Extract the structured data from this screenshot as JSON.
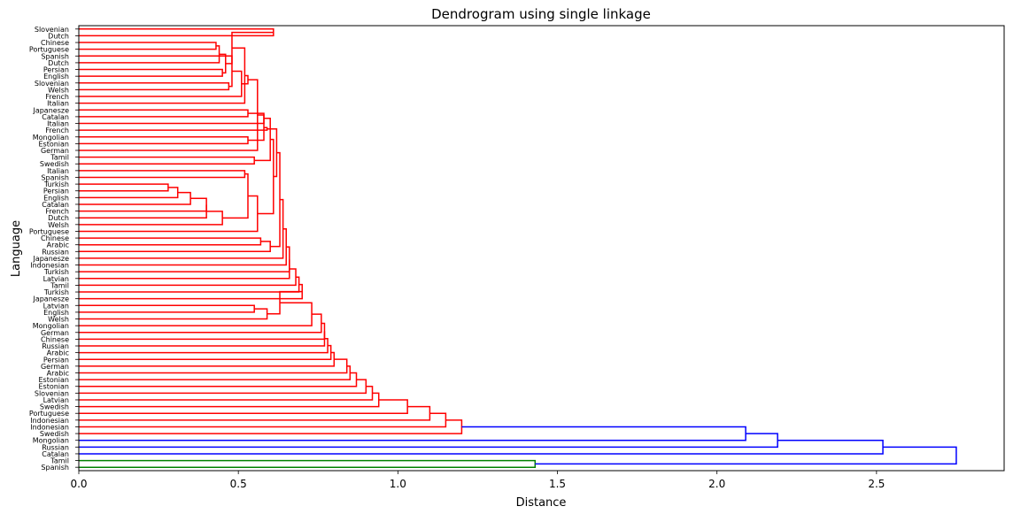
{
  "chart_data": {
    "type": "dendrogram",
    "title": "Dendrogram using single linkage",
    "xlabel": "Distance",
    "ylabel": "Language",
    "xlim": [
      0,
      2.9
    ],
    "xticks": [
      "0.0",
      "0.5",
      "1.0",
      "1.5",
      "2.0",
      "2.5"
    ],
    "xtick_values": [
      0,
      0.5,
      1.0,
      1.5,
      2.0,
      2.5
    ],
    "orientation": "left",
    "grid": false,
    "colors": {
      "cluster_1": "#ff0000",
      "cluster_2": "#008000",
      "above_threshold": "#0000ff"
    },
    "leaves": [
      "Slovenian",
      "Dutch",
      "Chinese",
      "Portuguese",
      "Spanish",
      "Dutch",
      "Persian",
      "English",
      "Slovenian",
      "Welsh",
      "French",
      "Italian",
      "Japanesze",
      "Catalan",
      "Italian",
      "French",
      "Mongolian",
      "Estonian",
      "German",
      "Tamil",
      "Swedish",
      "Italian",
      "Spanish",
      "Turkish",
      "Persian",
      "English",
      "Catalan",
      "French",
      "Dutch",
      "Welsh",
      "Portuguese",
      "Chinese",
      "Arabic",
      "Russian",
      "Japanesze",
      "Indonesian",
      "Turkish",
      "Latvian",
      "Tamil",
      "Turkish",
      "Japanesze",
      "Latvian",
      "English",
      "Welsh",
      "Mongolian",
      "German",
      "Chinese",
      "Russian",
      "Arabic",
      "Persian",
      "German",
      "Arabic",
      "Estonian",
      "Estonian",
      "Slovenian",
      "Latvian",
      "Swedish",
      "Portuguese",
      "Indonesian",
      "Indonesian",
      "Swedish",
      "Mongolian",
      "Russian",
      "Catalan",
      "Tamil",
      "Spanish"
    ],
    "merges": [
      {
        "a": 0,
        "b": 1,
        "d": 0.61,
        "c": "red"
      },
      {
        "a": 2,
        "b": 3,
        "d": 0.43,
        "c": "red"
      },
      {
        "a": 6,
        "b": 7,
        "d": 0.45,
        "c": "red"
      },
      {
        "a": 5,
        "b": "m2",
        "d": 0.44,
        "c": "red"
      },
      {
        "a": 8,
        "b": 9,
        "d": 0.47,
        "c": "red"
      },
      {
        "a": "m3",
        "b": "m4",
        "d": 0.46,
        "c": "red"
      },
      {
        "a": 4,
        "b": "m5",
        "d": 0.48,
        "c": "red"
      },
      {
        "a": "m1",
        "b": "m6",
        "d": 0.48,
        "c": "red"
      },
      {
        "a": "m7",
        "b": 10,
        "d": 0.51,
        "c": "red"
      },
      {
        "a": "m8",
        "b": 11,
        "d": 0.52,
        "c": "red"
      },
      {
        "a": 12,
        "b": 13,
        "d": 0.53,
        "c": "red"
      },
      {
        "a": "m9",
        "b": "m10",
        "d": 0.53,
        "c": "red"
      },
      {
        "a": 16,
        "b": 17,
        "d": 0.53,
        "c": "red"
      },
      {
        "a": "m12",
        "b": 18,
        "d": 0.56,
        "c": "red"
      },
      {
        "a": 19,
        "b": 20,
        "d": 0.55,
        "c": "red"
      },
      {
        "a": "m13",
        "b": "m14",
        "d": 0.58,
        "c": "red"
      },
      {
        "a": "m11",
        "b": 14,
        "d": 0.58,
        "c": "red"
      },
      {
        "a": "m16",
        "b": 15,
        "d": 0.59,
        "c": "red"
      },
      {
        "a": "m17",
        "b": "m15",
        "d": 0.6,
        "c": "red"
      },
      {
        "a": 21,
        "b": 22,
        "d": 0.52,
        "c": "red"
      },
      {
        "a": 23,
        "b": 24,
        "d": 0.28,
        "c": "red"
      },
      {
        "a": "m21",
        "b": 25,
        "d": 0.31,
        "c": "red"
      },
      {
        "a": "m22",
        "b": 26,
        "d": 0.35,
        "c": "red"
      },
      {
        "a": "m23",
        "b": 27,
        "d": 0.4,
        "c": "red"
      },
      {
        "a": "m24",
        "b": 28,
        "d": 0.4,
        "c": "red"
      },
      {
        "a": "m25",
        "b": 29,
        "d": 0.45,
        "c": "red"
      },
      {
        "a": "m20",
        "b": "m26",
        "d": 0.53,
        "c": "red"
      },
      {
        "a": "m27",
        "b": 30,
        "d": 0.56,
        "c": "red"
      },
      {
        "a": "m19",
        "b": "m28",
        "d": 0.61,
        "c": "red"
      },
      {
        "a": "m18",
        "b": "m29",
        "d": 0.62,
        "c": "red"
      },
      {
        "a": 31,
        "b": 32,
        "d": 0.57,
        "c": "red"
      },
      {
        "a": "m31",
        "b": 33,
        "d": 0.6,
        "c": "red"
      },
      {
        "a": "m30",
        "b": "m32",
        "d": 0.63,
        "c": "red"
      },
      {
        "a": "m33",
        "b": 34,
        "d": 0.64,
        "c": "red"
      },
      {
        "a": "m34",
        "b": 35,
        "d": 0.65,
        "c": "red"
      },
      {
        "a": "m35",
        "b": 36,
        "d": 0.66,
        "c": "red"
      },
      {
        "a": "m36",
        "b": 37,
        "d": 0.66,
        "c": "red"
      },
      {
        "a": "m37",
        "b": 38,
        "d": 0.68,
        "c": "red"
      },
      {
        "a": "m38",
        "b": 39,
        "d": 0.69,
        "c": "red"
      },
      {
        "a": "m39",
        "b": 40,
        "d": 0.7,
        "c": "red"
      },
      {
        "a": 41,
        "b": 42,
        "d": 0.55,
        "c": "red"
      },
      {
        "a": "m41",
        "b": 43,
        "d": 0.59,
        "c": "red"
      },
      {
        "a": "m40",
        "b": "m42",
        "d": 0.63,
        "c": "red"
      },
      {
        "a": "m43",
        "b": 44,
        "d": 0.73,
        "c": "red"
      },
      {
        "a": "m44",
        "b": 45,
        "d": 0.76,
        "c": "red"
      },
      {
        "a": "m45",
        "b": 46,
        "d": 0.77,
        "c": "red"
      },
      {
        "a": "m46",
        "b": 47,
        "d": 0.77,
        "c": "red"
      },
      {
        "a": "m47",
        "b": 48,
        "d": 0.78,
        "c": "red"
      },
      {
        "a": "m48",
        "b": 49,
        "d": 0.79,
        "c": "red"
      },
      {
        "a": "m49",
        "b": 50,
        "d": 0.8,
        "c": "red"
      },
      {
        "a": "m50",
        "b": 51,
        "d": 0.84,
        "c": "red"
      },
      {
        "a": "m51",
        "b": 52,
        "d": 0.85,
        "c": "red"
      },
      {
        "a": "m52",
        "b": 53,
        "d": 0.87,
        "c": "red"
      },
      {
        "a": "m53",
        "b": 54,
        "d": 0.9,
        "c": "red"
      },
      {
        "a": "m54",
        "b": 55,
        "d": 0.92,
        "c": "red"
      },
      {
        "a": "m55",
        "b": 56,
        "d": 0.94,
        "c": "red"
      },
      {
        "a": "m56",
        "b": 57,
        "d": 1.03,
        "c": "red"
      },
      {
        "a": "m57",
        "b": 58,
        "d": 1.1,
        "c": "red"
      },
      {
        "a": "m58",
        "b": 59,
        "d": 1.15,
        "c": "red"
      },
      {
        "a": "m59",
        "b": 60,
        "d": 1.2,
        "c": "red"
      },
      {
        "a": "m60",
        "b": 61,
        "d": 2.09,
        "c": "blue"
      },
      {
        "a": "m61",
        "b": 62,
        "d": 2.19,
        "c": "blue"
      },
      {
        "a": "m62",
        "b": 63,
        "d": 2.52,
        "c": "blue"
      },
      {
        "a": 64,
        "b": 65,
        "d": 1.43,
        "c": "green"
      },
      {
        "a": "m63",
        "b": "m64",
        "d": 2.75,
        "c": "blue"
      }
    ]
  }
}
